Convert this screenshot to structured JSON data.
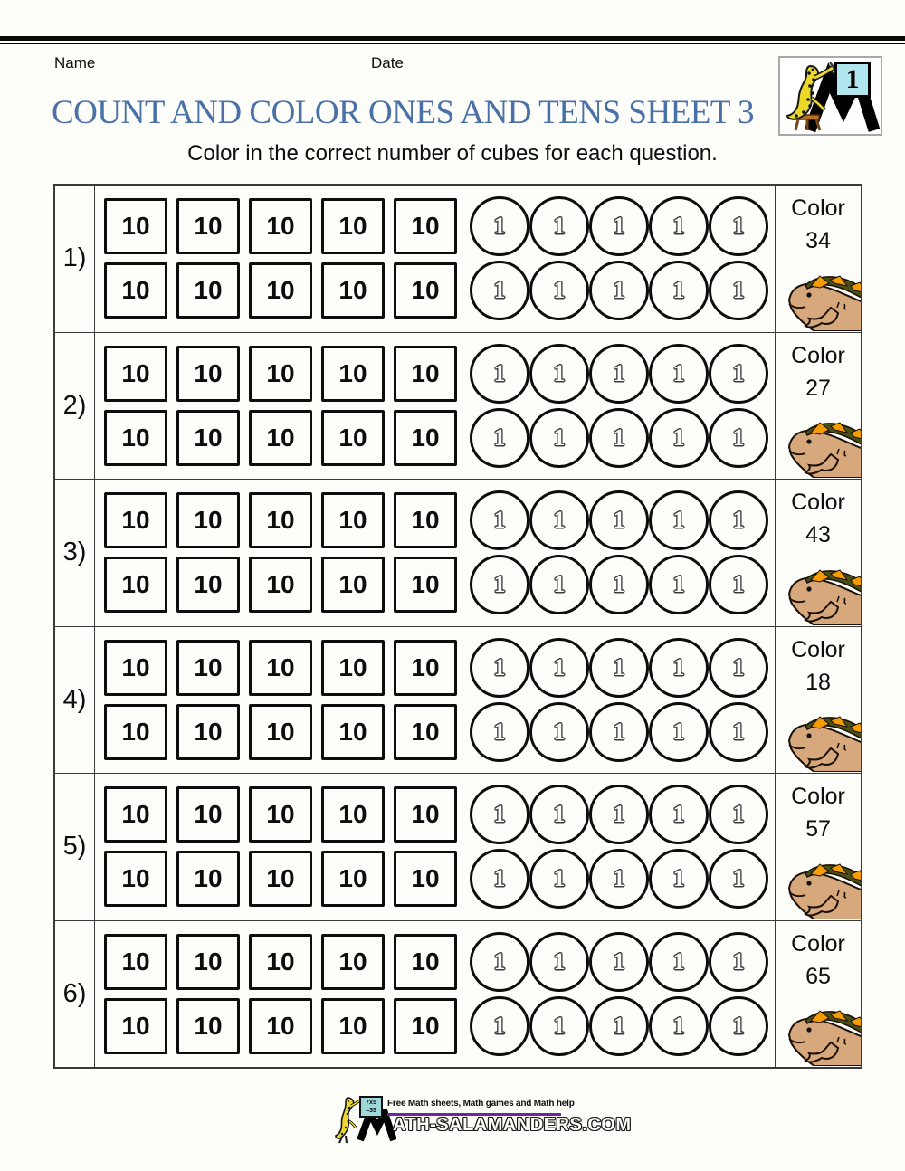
{
  "header": {
    "name_label": "Name",
    "date_label": "Date",
    "title": "COUNT AND COLOR ONES AND TENS SHEET 3",
    "subtitle": "Color in the correct number of cubes for each question.",
    "logo_number": "1"
  },
  "worksheet": {
    "color_label": "Color",
    "tens_value": "10",
    "ones_value": "1",
    "tens_per_line": 5,
    "ones_per_line": 5,
    "lines_per_question": 2,
    "rows": [
      {
        "number_label": "1)",
        "color_count": "34"
      },
      {
        "number_label": "2)",
        "color_count": "27"
      },
      {
        "number_label": "3)",
        "color_count": "43"
      },
      {
        "number_label": "4)",
        "color_count": "18"
      },
      {
        "number_label": "5)",
        "color_count": "57"
      },
      {
        "number_label": "6)",
        "color_count": "65"
      }
    ]
  },
  "footer": {
    "board_line1": "7x5",
    "board_line2": "=35",
    "tagline": "Free Math sheets, Math games and Math help",
    "site_name": "MATH-SALAMANDERS.COM"
  },
  "icons": {
    "header_logo": "salamander-with-number-card-and-m",
    "row_art": "iguana-lizard",
    "footer_logo": "salamander-with-math-board-and-m"
  },
  "colors": {
    "title_blue": "#4a70a8",
    "underline_purple": "#6a28a0",
    "lizard_body_tan": "#d7a87c",
    "lizard_crest_orange": "#f59c00",
    "lizard_crest_dark": "#4a4f15",
    "salamander_yellow": "#ecd829",
    "logo_card_cyan": "#b2e6ee",
    "board_teal": "#9fd8d8",
    "table_line": "#3a3a3a"
  }
}
